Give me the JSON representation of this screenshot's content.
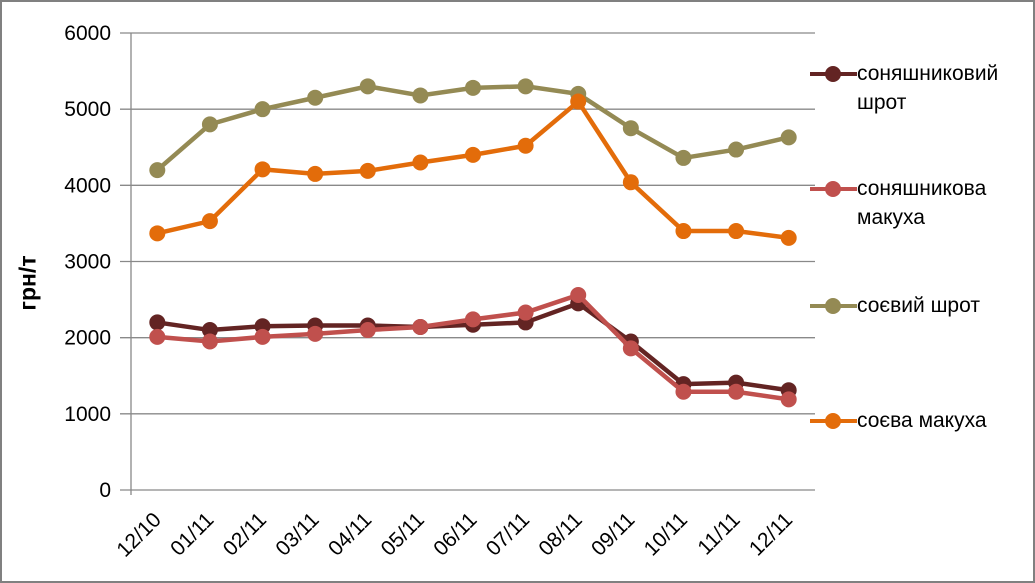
{
  "chart_data": {
    "type": "line",
    "title": "",
    "ylabel": "грн/т",
    "xlabel": "",
    "ylim": [
      0,
      6000
    ],
    "y_ticks": [
      0,
      1000,
      2000,
      3000,
      4000,
      5000,
      6000
    ],
    "grid": true,
    "legend_position": "right",
    "axis_color": "#898989",
    "text_color": "#000000",
    "categories": [
      "12/10",
      "01/11",
      "02/11",
      "03/11",
      "04/11",
      "05/11",
      "06/11",
      "07/11",
      "08/11",
      "09/11",
      "10/11",
      "11/11",
      "12/11"
    ],
    "series": [
      {
        "name": "соняшниковий шрот",
        "color": "#632423",
        "values": [
          2200,
          2100,
          2150,
          2160,
          2160,
          2140,
          2170,
          2200,
          2450,
          1950,
          1390,
          1410,
          1310
        ]
      },
      {
        "name": "соняшникова макуха",
        "color": "#C0504D",
        "values": [
          2010,
          1950,
          2010,
          2050,
          2100,
          2140,
          2240,
          2330,
          2560,
          1860,
          1290,
          1290,
          1190
        ]
      },
      {
        "name": "соєвий шрот",
        "color": "#948A54",
        "values": [
          4200,
          4800,
          5000,
          5150,
          5300,
          5180,
          5280,
          5300,
          5200,
          4750,
          4360,
          4470,
          4630
        ]
      },
      {
        "name": "соєва макуха",
        "color": "#E36C0A",
        "values": [
          3370,
          3530,
          4210,
          4150,
          4190,
          4300,
          4400,
          4520,
          5100,
          4040,
          3400,
          3400,
          3310
        ]
      }
    ]
  }
}
